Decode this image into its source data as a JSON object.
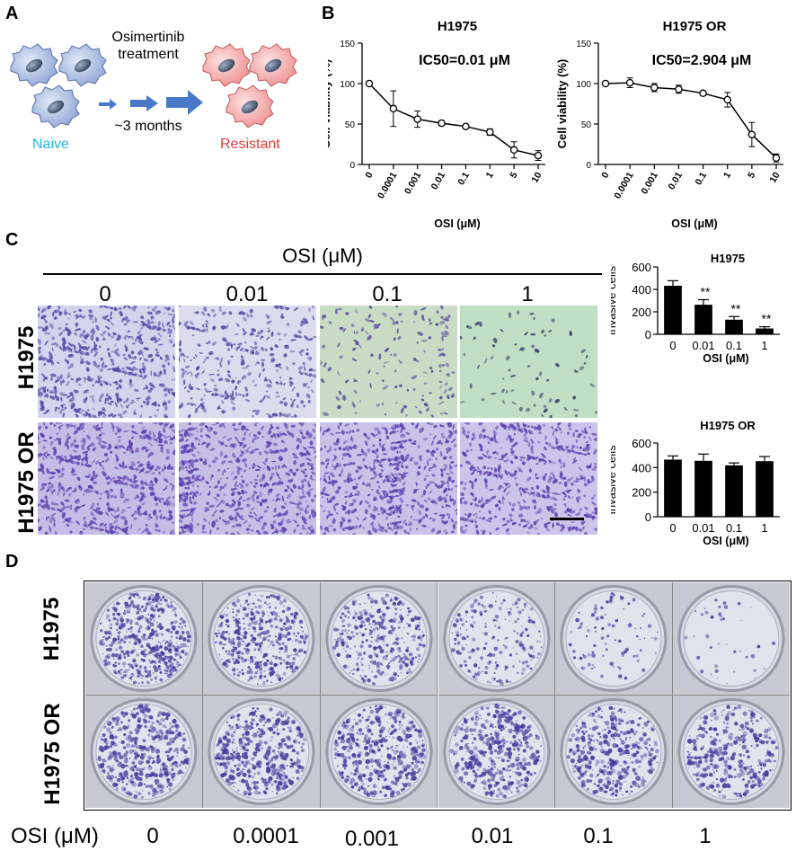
{
  "panels": {
    "a": "A",
    "b": "B",
    "c": "C",
    "d": "D"
  },
  "panelA": {
    "treatment_line1": "Osimertinib",
    "treatment_line2": "treatment",
    "duration": "~3 months",
    "naive_label": "Naive",
    "resistant_label": "Resistant",
    "naive_color": "#29b6e6",
    "resistant_color": "#e23b3b"
  },
  "panelC": {
    "header": "OSI (μM)",
    "columns": [
      "0",
      "0.01",
      "0.1",
      "1"
    ],
    "rows": [
      "H1975",
      "H1975 OR"
    ]
  },
  "panelD": {
    "rows": [
      "H1975",
      "H1975 OR"
    ],
    "osi_label": "OSI (μM)",
    "columns": [
      "0",
      "0.0001",
      "0.001",
      "0.01",
      "0.1",
      "1"
    ]
  },
  "chart_data": [
    {
      "type": "line",
      "title": "H1975",
      "annotation": "IC50=0.01 μM",
      "xlabel": "OSI (μM)",
      "ylabel": "Cell viability (%)",
      "categories": [
        "0",
        "0.0001",
        "0.001",
        "0.01",
        "0.1",
        "1",
        "5",
        "10"
      ],
      "values": [
        100,
        69,
        56,
        51,
        47,
        40,
        18,
        11
      ],
      "errors": [
        0,
        22,
        10,
        3,
        2,
        4,
        10,
        6
      ],
      "yticks": [
        0,
        50,
        100,
        150
      ],
      "ylim": [
        0,
        150
      ]
    },
    {
      "type": "line",
      "title": "H1975 OR",
      "annotation": "IC50=2.904 μM",
      "xlabel": "OSI (μM)",
      "ylabel": "Cell viability (%)",
      "categories": [
        "0",
        "0.0001",
        "0.001",
        "0.01",
        "0.1",
        "1",
        "5",
        "10"
      ],
      "values": [
        100,
        101,
        95,
        93,
        88,
        80,
        37,
        8
      ],
      "errors": [
        0,
        6,
        5,
        5,
        2,
        9,
        15,
        5
      ],
      "yticks": [
        0,
        50,
        100,
        150
      ],
      "ylim": [
        0,
        150
      ]
    },
    {
      "type": "bar",
      "title": "H1975",
      "xlabel": "OSI (μM)",
      "ylabel": "Invasive cells",
      "categories": [
        "0",
        "0.01",
        "0.1",
        "1"
      ],
      "values": [
        432,
        263,
        130,
        52
      ],
      "errors": [
        45,
        45,
        28,
        15
      ],
      "significance": [
        "",
        "**",
        "**",
        "**"
      ],
      "yticks": [
        0,
        200,
        400,
        600
      ],
      "ylim": [
        0,
        600
      ]
    },
    {
      "type": "bar",
      "title": "H1975 OR",
      "xlabel": "OSI (μM)",
      "ylabel": "Invasive cells",
      "categories": [
        "0",
        "0.01",
        "0.1",
        "1"
      ],
      "values": [
        465,
        455,
        418,
        452
      ],
      "errors": [
        30,
        55,
        20,
        38
      ],
      "significance": [
        "",
        "",
        "",
        ""
      ],
      "yticks": [
        0,
        200,
        400,
        600
      ],
      "ylim": [
        0,
        600
      ]
    }
  ]
}
